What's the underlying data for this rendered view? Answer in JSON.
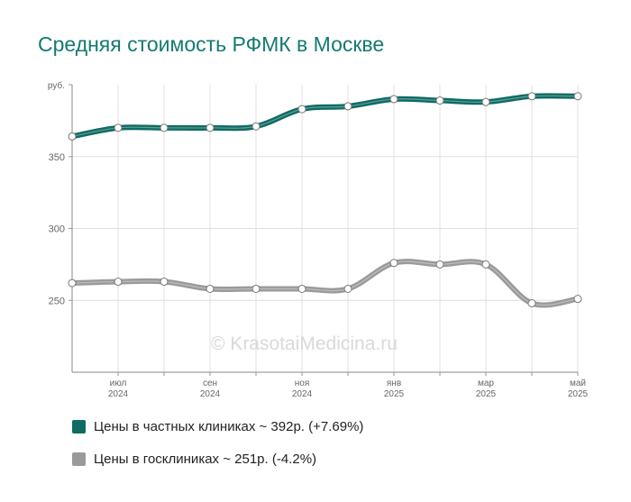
{
  "title": "Средняя стоимость РФМК в Москве",
  "watermark": "© KrasotaiMedicina.ru",
  "colors": {
    "private": "#0f6b63",
    "public": "#9a9a9a",
    "title": "#157a70",
    "grid": "#e0e0e0"
  },
  "chart_data": {
    "type": "line",
    "title": "Средняя стоимость РФМК в Москве",
    "ylabel": "руб.",
    "ylim": [
      200,
      400
    ],
    "yticks": [
      250,
      300,
      350
    ],
    "x": [
      "2024-06",
      "2024-07",
      "2024-08",
      "2024-09",
      "2024-10",
      "2024-11",
      "2024-12",
      "2025-01",
      "2025-02",
      "2025-03",
      "2025-04",
      "2025-05"
    ],
    "xtick_labels": [
      {
        "month": "июл",
        "year": "2024"
      },
      {
        "month": "сен",
        "year": "2024"
      },
      {
        "month": "ноя",
        "year": "2024"
      },
      {
        "month": "янв",
        "year": "2025"
      },
      {
        "month": "мар",
        "year": "2025"
      },
      {
        "month": "май",
        "year": "2025"
      }
    ],
    "grid": true,
    "legend_position": "bottom",
    "series": [
      {
        "name": "Цены в частных клиниках",
        "values": [
          364,
          370,
          370,
          370,
          371,
          383,
          385,
          390,
          389,
          388,
          392,
          392
        ]
      },
      {
        "name": "Цены в госклиниках",
        "values": [
          262,
          263,
          263,
          258,
          258,
          258,
          258,
          276,
          275,
          275,
          248,
          251
        ]
      }
    ]
  },
  "legend": [
    {
      "label": "Цены в частных клиниках ~ 392р. (+7.69%)"
    },
    {
      "label": "Цены в госклиниках ~ 251р. (-4.2%)"
    }
  ]
}
